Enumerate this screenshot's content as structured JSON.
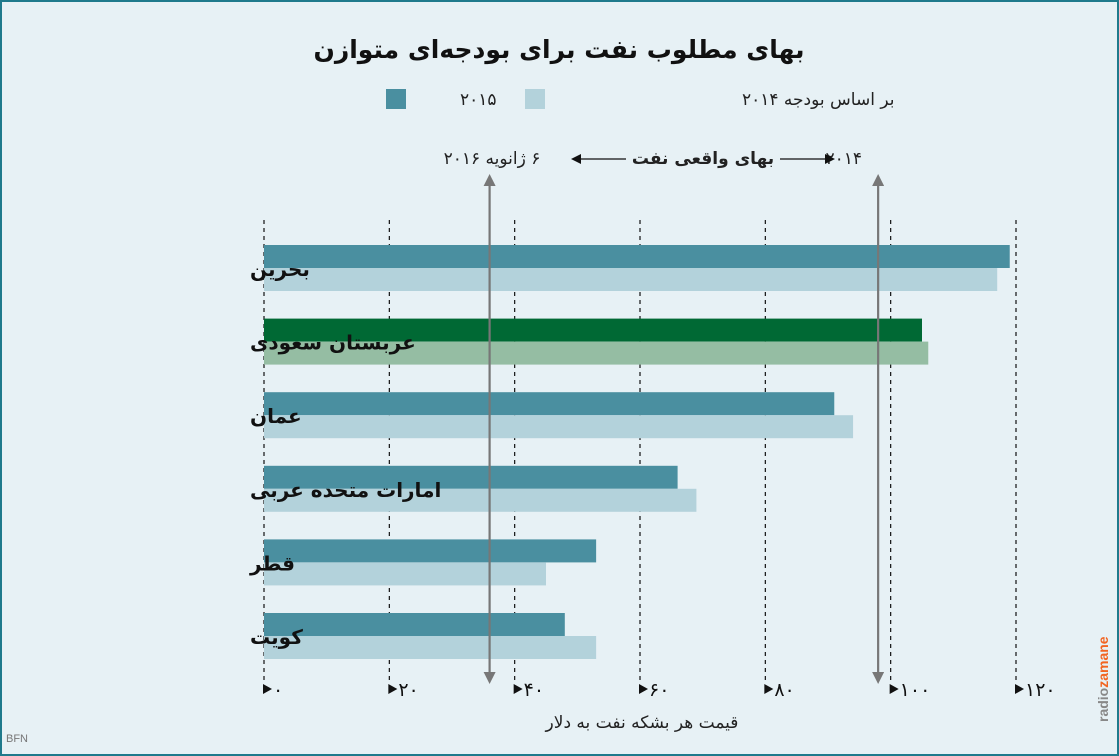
{
  "chart_data": {
    "type": "bar",
    "title": "بهای مطلوب نفت برای بودجه‌ای متوازن",
    "xlabel": "قیمت هر بشکه نفت به دلار",
    "categories": [
      "بحرین",
      "عربستان سعودی",
      "عمان",
      "امارات متحده عربی",
      "قطر",
      "کویت"
    ],
    "series": [
      {
        "name": "۲۰۱۵",
        "color": "#4a8fa0",
        "values": [
          119,
          105,
          91,
          66,
          53,
          48
        ]
      },
      {
        "name": "بر اساس بودجه ۲۰۱۴",
        "color": "#b3d2db",
        "values": [
          117,
          106,
          94,
          69,
          45,
          53
        ]
      }
    ],
    "highlight": {
      "category_index": 1,
      "colors": [
        "#006934",
        "#95bda3"
      ]
    },
    "xlim": [
      0,
      120
    ],
    "xticks": [
      0,
      20,
      40,
      60,
      80,
      100,
      120
    ],
    "xtick_labels": [
      "۰",
      "۲۰",
      "۴۰",
      "۶۰",
      "۸۰",
      "۱۰۰",
      "۱۲۰"
    ],
    "grid": true,
    "legend_position": "top",
    "reference_lines": [
      {
        "value": 36,
        "label": "۶ ژانویه ۲۰۱۶"
      },
      {
        "value": 98,
        "label": "۲۰۱۴"
      }
    ],
    "reference_caption": "بهای واقعی نفت",
    "credit": "BFN",
    "brand": {
      "prefix": "radio",
      "suffix": "zamane",
      "prefix_color": "#888888",
      "suffix_color": "#f26522"
    }
  }
}
